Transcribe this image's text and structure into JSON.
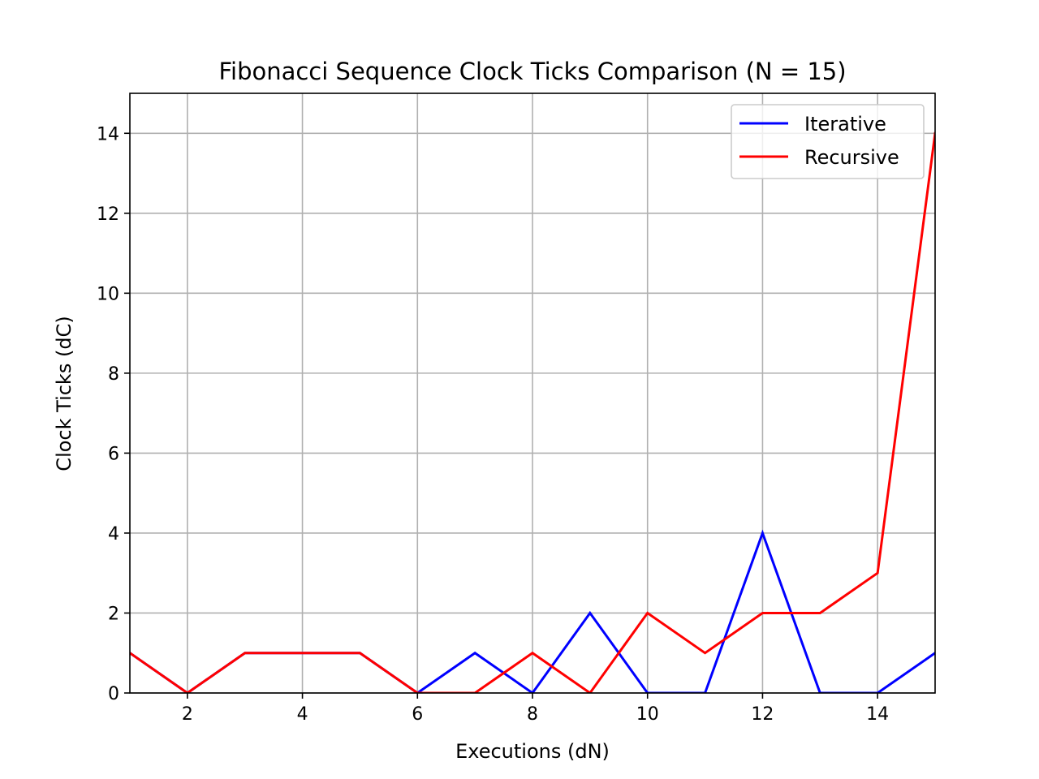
{
  "chart_data": {
    "type": "line",
    "title": "Fibonacci Sequence Clock Ticks Comparison (N = 15)",
    "xlabel": "Executions (dN)",
    "ylabel": "Clock Ticks (dC)",
    "xlim": [
      1,
      15
    ],
    "ylim": [
      0,
      15
    ],
    "xticks": [
      2,
      4,
      6,
      8,
      10,
      12,
      14
    ],
    "yticks": [
      0,
      2,
      4,
      6,
      8,
      10,
      12,
      14
    ],
    "grid": true,
    "legend_position": "top-right",
    "x": [
      1,
      2,
      3,
      4,
      5,
      6,
      7,
      8,
      9,
      10,
      11,
      12,
      13,
      14,
      15
    ],
    "series": [
      {
        "name": "Iterative",
        "color": "#0000ff",
        "values": [
          1,
          0,
          1,
          1,
          1,
          0,
          1,
          0,
          2,
          0,
          0,
          4,
          0,
          0,
          1
        ]
      },
      {
        "name": "Recursive",
        "color": "#ff0000",
        "values": [
          1,
          0,
          1,
          1,
          1,
          0,
          0,
          1,
          0,
          2,
          1,
          2,
          2,
          3,
          14
        ]
      }
    ]
  }
}
